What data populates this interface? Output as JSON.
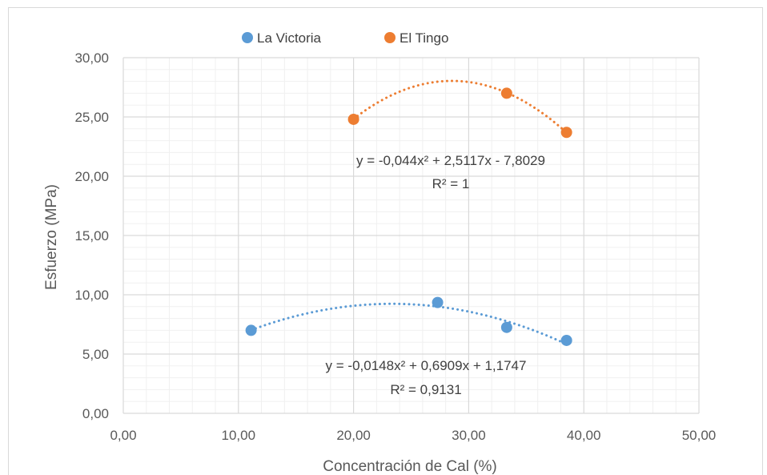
{
  "chart_data": {
    "type": "scatter",
    "title": "",
    "xlabel": "Concentración de Cal (%)",
    "ylabel": "Esfuerzo (MPa)",
    "xlim": [
      0,
      50
    ],
    "ylim": [
      0,
      30
    ],
    "x_ticks": [
      "0,00",
      "10,00",
      "20,00",
      "30,00",
      "40,00",
      "50,00"
    ],
    "y_ticks": [
      "0,00",
      "5,00",
      "10,00",
      "15,00",
      "20,00",
      "25,00",
      "30,00"
    ],
    "grid": true,
    "legend_position": "top",
    "series": [
      {
        "name": "La Victoria",
        "color": "#5b9bd5",
        "points": [
          [
            11.1,
            7.0
          ],
          [
            27.3,
            9.35
          ],
          [
            33.3,
            7.25
          ],
          [
            38.5,
            6.15
          ]
        ],
        "trendline": {
          "type": "polynomial",
          "order": 2,
          "coefficients": [
            -0.0148,
            0.6909,
            1.1747
          ],
          "x_range": [
            11.1,
            38.5
          ],
          "equation": "y = -0,0148x² + 0,6909x + 1,1747",
          "r2": "R² = 0,9131"
        }
      },
      {
        "name": "El Tingo",
        "color": "#ed7d31",
        "points": [
          [
            20.0,
            24.8
          ],
          [
            33.3,
            27.0
          ],
          [
            38.5,
            23.7
          ]
        ],
        "trendline": {
          "type": "polynomial",
          "order": 2,
          "coefficients": [
            -0.044,
            2.5117,
            -7.8029
          ],
          "x_range": [
            20.0,
            38.5
          ],
          "equation": "y = -0,044x² + 2,5117x - 7,8029",
          "r2": "R² = 1"
        }
      }
    ]
  }
}
